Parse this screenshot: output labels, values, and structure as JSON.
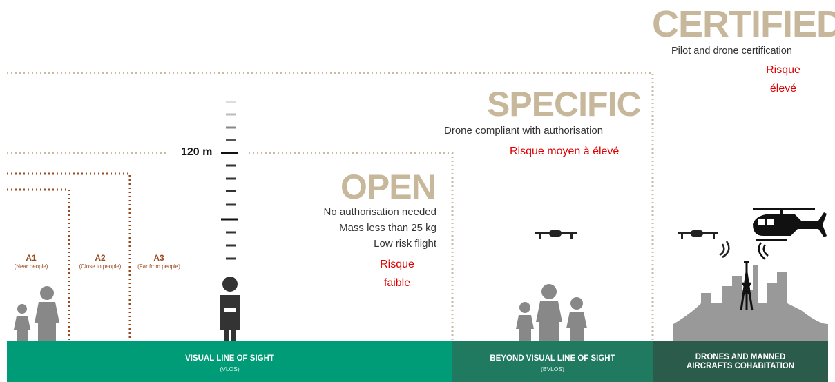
{
  "categories": {
    "certified": {
      "title": "CERTIFIED",
      "description": "Pilot and drone certification",
      "risk": "Risque élevé"
    },
    "specific": {
      "title": "SPECIFIC",
      "description": "Drone compliant with authorisation",
      "risk": "Risque moyen à élevé"
    },
    "open": {
      "title": "OPEN",
      "conditions": [
        "No authorisation needed",
        "Mass less than 25 kg",
        "Low risk flight"
      ],
      "risk": "Risque faible"
    }
  },
  "height_limit": "120 m",
  "subcategories": [
    {
      "label": "A1",
      "description": "(Near people)"
    },
    {
      "label": "A2",
      "description": "(Close to people)"
    },
    {
      "label": "A3",
      "description": "(Far from people)"
    }
  ],
  "zones": [
    {
      "label": "VISUAL LINE OF SIGHT",
      "abbreviation": "(VLOS)"
    },
    {
      "label": "BEYOND VISUAL LINE OF SIGHT",
      "abbreviation": "(BVLOS)"
    },
    {
      "label": "DRONES AND MANNED AIRCRAFTS COHABITATION"
    }
  ]
}
